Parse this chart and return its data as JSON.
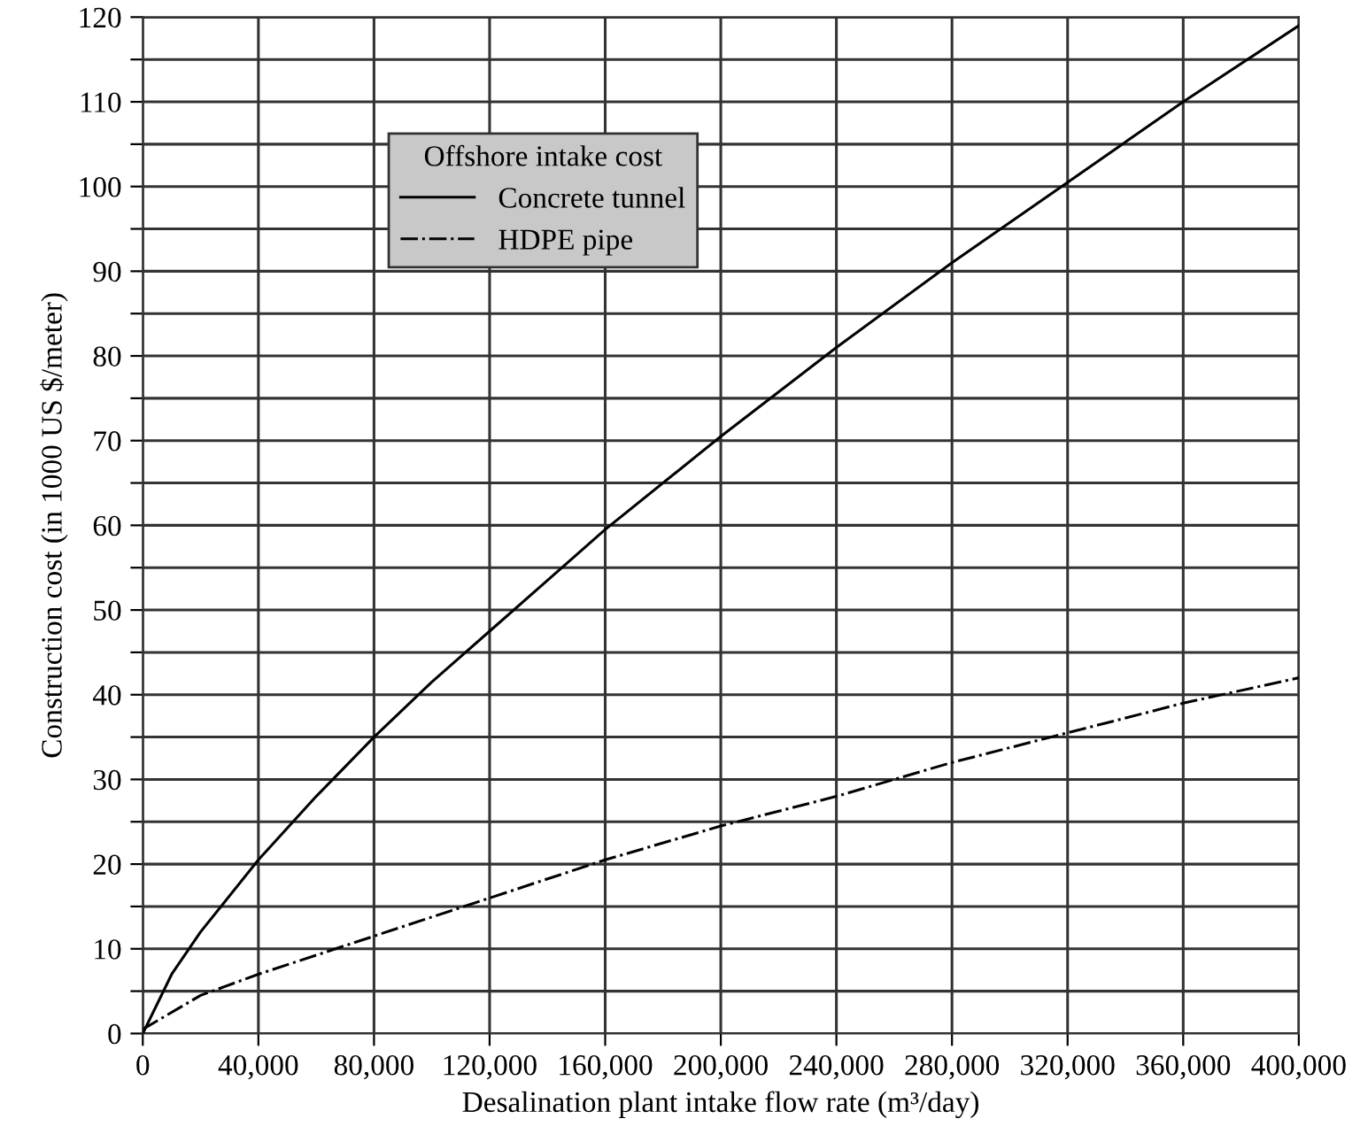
{
  "chart_data": {
    "type": "line",
    "xlabel": "Desalination plant intake flow rate (m³/day)",
    "ylabel": "Construction cost (in 1000 US $/meter)",
    "legend_title": "Offshore intake cost",
    "xlim": [
      0,
      400000
    ],
    "ylim": [
      0,
      120
    ],
    "xticks": [
      0,
      {
        "value": 40000,
        "label": "40,000"
      },
      {
        "value": 80000,
        "label": "80,000"
      },
      {
        "value": 120000,
        "label": "120,000"
      },
      {
        "value": 160000,
        "label": "160,000"
      },
      {
        "value": 200000,
        "label": "200,000"
      },
      {
        "value": 240000,
        "label": "240,000"
      },
      {
        "value": 280000,
        "label": "280,000"
      },
      {
        "value": 320000,
        "label": "320,000"
      },
      {
        "value": 360000,
        "label": "360,000"
      },
      {
        "value": 400000,
        "label": "400,000"
      }
    ],
    "yticks": [
      0,
      {
        "value": 5,
        "label": null
      },
      10,
      {
        "value": 15,
        "label": null
      },
      20,
      {
        "value": 25,
        "label": null
      },
      30,
      {
        "value": 35,
        "label": null
      },
      40,
      {
        "value": 45,
        "label": null
      },
      50,
      {
        "value": 55,
        "label": null
      },
      60,
      {
        "value": 65,
        "label": null
      },
      70,
      {
        "value": 75,
        "label": null
      },
      80,
      {
        "value": 85,
        "label": null
      },
      90,
      {
        "value": 95,
        "label": null
      },
      100,
      {
        "value": 105,
        "label": null
      },
      110,
      {
        "value": 115,
        "label": null
      },
      120
    ],
    "grid": true,
    "legend": "top left",
    "marker": "none",
    "series": [
      {
        "name": "Concrete tunnel",
        "color": "#000000",
        "line_style": "solid",
        "x": [
          0,
          10000,
          20000,
          40000,
          60000,
          80000,
          100000,
          120000,
          140000,
          160000,
          200000,
          240000,
          280000,
          320000,
          360000,
          400000
        ],
        "values": [
          0,
          7,
          12,
          20.5,
          28,
          35,
          41.5,
          47.5,
          53.5,
          59.5,
          70.5,
          81,
          91,
          100.5,
          110,
          119
        ]
      },
      {
        "name": "HDPE pipe",
        "color": "#000000",
        "line_style": "dashdot",
        "x": [
          0,
          20000,
          40000,
          80000,
          120000,
          160000,
          200000,
          240000,
          280000,
          320000,
          360000,
          400000
        ],
        "values": [
          0.5,
          4.5,
          7,
          11.5,
          16,
          20.5,
          24.5,
          28,
          32,
          35.5,
          39,
          42
        ]
      }
    ]
  }
}
